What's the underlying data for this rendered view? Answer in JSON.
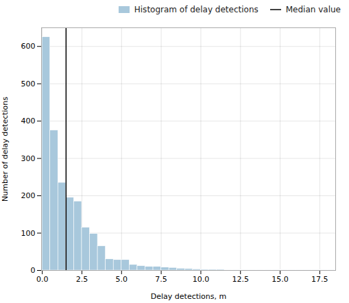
{
  "chart_data": {
    "type": "histogram",
    "xlabel": "Delay detections, m",
    "ylabel": "Number of delay detections",
    "bins": [
      0,
      0.5,
      1,
      1.5,
      2,
      2.5,
      3,
      3.5,
      4,
      4.5,
      5,
      5.5,
      6,
      6.5,
      7,
      7.5,
      8,
      8.5,
      9,
      9.5,
      10,
      10.5,
      11,
      11.5,
      12,
      12.5,
      13,
      13.5,
      14,
      14.5,
      15,
      15.5,
      16,
      16.5,
      17,
      17.5,
      18,
      18.5
    ],
    "series": [
      {
        "name": "Histogram of delay detections",
        "type": "histogram",
        "color": "#a8c8dc",
        "values": [
          625,
          375,
          235,
          195,
          185,
          115,
          98,
          65,
          30,
          28,
          28,
          15,
          12,
          10,
          10,
          8,
          7,
          5,
          4,
          3,
          2,
          2,
          2,
          1,
          1,
          1,
          1,
          1,
          1,
          1,
          1,
          1,
          1,
          1,
          1,
          1,
          1
        ]
      },
      {
        "name": "Median value",
        "type": "vline",
        "color": "#000000",
        "values": [
          1.5
        ]
      }
    ],
    "xlim": [
      -0.05,
      18.5
    ],
    "ylim": [
      0,
      650
    ],
    "xticks": [
      {
        "value": 0,
        "label": "0.0"
      },
      2.5,
      {
        "value": 5,
        "label": "5.0"
      },
      7.5,
      {
        "value": 10,
        "label": "10.0"
      },
      12.5,
      {
        "value": 15,
        "label": "15.0"
      },
      17.5
    ],
    "yticks": [
      0,
      100,
      200,
      300,
      400,
      500,
      600
    ],
    "grid": true,
    "legend": "upper right"
  }
}
